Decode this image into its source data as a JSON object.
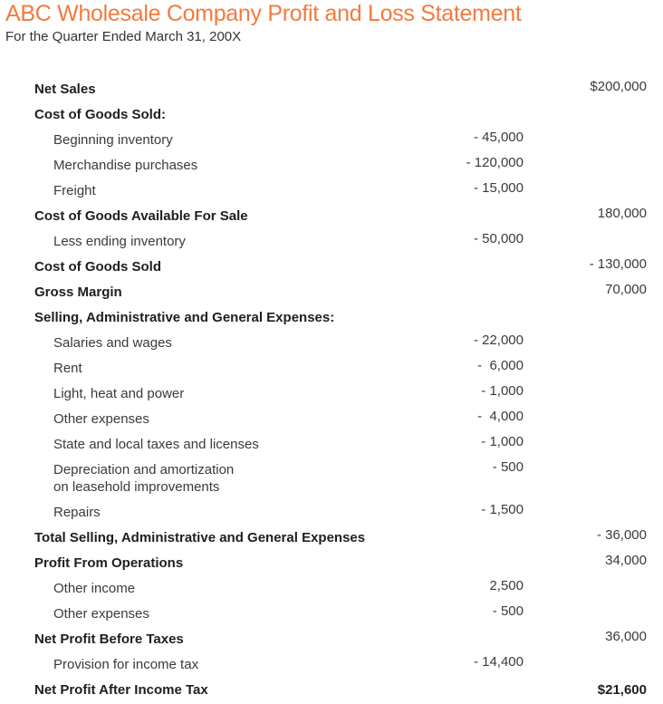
{
  "header": {
    "title": "ABC Wholesale Company Profit and Loss Statement",
    "subtitle": "For the Quarter Ended March 31, 200X"
  },
  "colors": {
    "title": "#f47a3c",
    "text": "#2b2b2b"
  },
  "rows": [
    {
      "label": "Net Sales",
      "bold": true,
      "mid": "",
      "right": "$200,000"
    },
    {
      "label": "Cost of Goods Sold:",
      "bold": true,
      "mid": "",
      "right": ""
    },
    {
      "label": "Beginning inventory",
      "indent": true,
      "mid": "- 45,000",
      "right": ""
    },
    {
      "label": "Merchandise purchases",
      "indent": true,
      "mid": "- 120,000",
      "right": ""
    },
    {
      "label": "Freight",
      "indent": true,
      "mid": "- 15,000",
      "right": ""
    },
    {
      "label": "Cost of Goods Available For Sale",
      "bold": true,
      "mid": "",
      "right": "180,000"
    },
    {
      "label": "Less ending inventory",
      "indent": true,
      "mid": "- 50,000",
      "right": ""
    },
    {
      "label": "Cost of Goods Sold",
      "bold": true,
      "mid": "",
      "right": "- 130,000"
    },
    {
      "label": "Gross Margin",
      "bold": true,
      "mid": "",
      "right": "70,000"
    },
    {
      "label": "Selling, Administrative and General Expenses:",
      "bold": true,
      "mid": "",
      "right": ""
    },
    {
      "label": "Salaries and wages",
      "indent": true,
      "mid": "- 22,000",
      "right": ""
    },
    {
      "label": "Rent",
      "indent": true,
      "mid": "-  6,000",
      "right": ""
    },
    {
      "label": "Light, heat and power",
      "indent": true,
      "mid": "- 1,000",
      "right": ""
    },
    {
      "label": "Other expenses",
      "indent": true,
      "mid": "-  4,000",
      "right": ""
    },
    {
      "label": "State and local taxes and licenses",
      "indent": true,
      "mid": "- 1,000",
      "right": ""
    },
    {
      "label": "Depreciation and amortization\non leasehold improvements",
      "indent": true,
      "tall": true,
      "mid": "- 500",
      "right": ""
    },
    {
      "label": "Repairs",
      "indent": true,
      "mid": "- 1,500",
      "right": ""
    },
    {
      "label": "Total Selling, Administrative and General Expenses",
      "bold": true,
      "mid": "",
      "right": "- 36,000"
    },
    {
      "label": "Profit From Operations",
      "bold": true,
      "mid": "",
      "right": "34,000"
    },
    {
      "label": "Other income",
      "indent": true,
      "mid": "2,500",
      "right": ""
    },
    {
      "label": "Other expenses",
      "indent": true,
      "mid": "- 500",
      "right": ""
    },
    {
      "label": "Net Profit Before Taxes",
      "bold": true,
      "mid": "",
      "right": "36,000"
    },
    {
      "label": "Provision for income tax",
      "indent": true,
      "mid": "- 14,400",
      "right": ""
    },
    {
      "label": "Net Profit After Income Tax",
      "bold": true,
      "final": true,
      "mid": "",
      "right": "$21,600"
    }
  ]
}
